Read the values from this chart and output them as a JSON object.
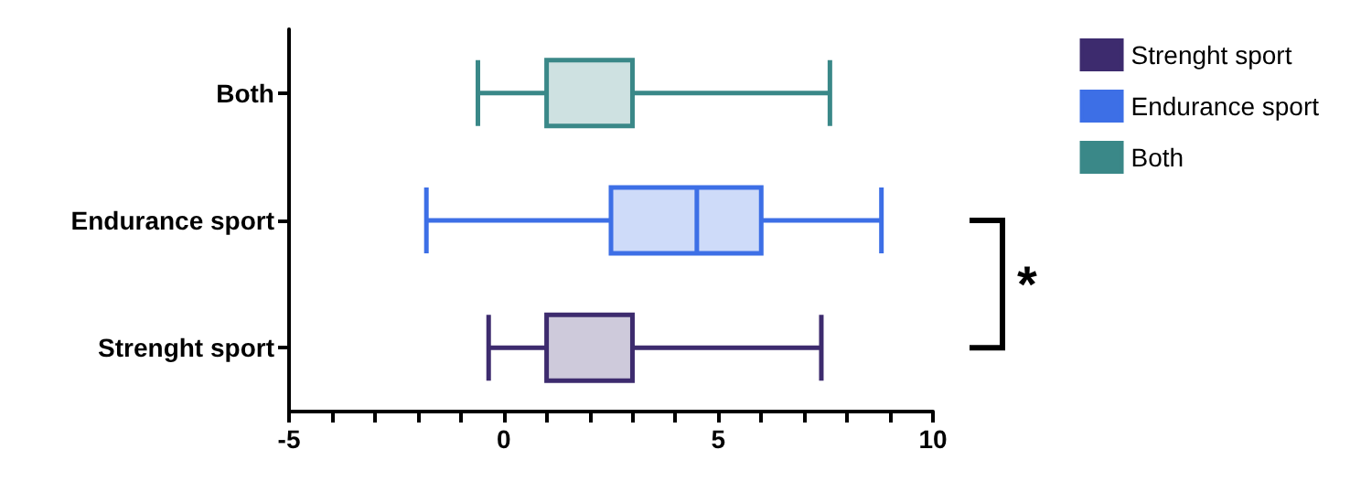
{
  "chart_data": {
    "type": "box",
    "orientation": "horizontal",
    "categories": [
      "Both",
      "Endurance sport",
      "Strenght sport"
    ],
    "xlim": [
      -5,
      10
    ],
    "xticks": [
      -5,
      {
        "value": -4,
        "label": null
      },
      {
        "value": -3,
        "label": null
      },
      {
        "value": -2,
        "label": null
      },
      {
        "value": -1,
        "label": null
      },
      0,
      {
        "value": 1,
        "label": null
      },
      {
        "value": 2,
        "label": null
      },
      {
        "value": 3,
        "label": null
      },
      {
        "value": 4,
        "label": null
      },
      5,
      {
        "value": 6,
        "label": null
      },
      {
        "value": 7,
        "label": null
      },
      {
        "value": 8,
        "label": null
      },
      {
        "value": 9,
        "label": null
      },
      10
    ],
    "series": [
      {
        "name": "Strenght sport",
        "color": "#3d2b6e",
        "boxes": [
          null,
          null,
          {
            "low": -0.35,
            "q1": 1,
            "median": 3,
            "q3": 3,
            "high": 7.4
          }
        ]
      },
      {
        "name": "Endurance sport",
        "color": "#3d6fe6",
        "boxes": [
          null,
          {
            "low": -1.8,
            "q1": 2.5,
            "median": 4.5,
            "q3": 6,
            "high": 8.8
          },
          null
        ]
      },
      {
        "name": "Both",
        "color": "#3a8888",
        "boxes": [
          {
            "low": -0.6,
            "q1": 1,
            "median": 3,
            "q3": 3,
            "high": 7.6
          },
          null,
          null
        ]
      }
    ],
    "annotations": [
      "*"
    ],
    "legend": "top right",
    "grid": false
  }
}
